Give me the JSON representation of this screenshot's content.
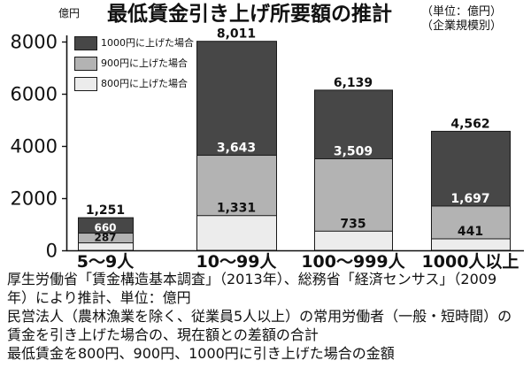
{
  "chart_data": {
    "type": "bar",
    "bar_mode": "overlay",
    "title": "最低賃金引き上げ所要額の推計",
    "subtitle": [
      "（単位：億円）",
      "（企業規模別）"
    ],
    "ylabel": "億円",
    "categories": [
      "5〜9人",
      "10〜99人",
      "100〜999人",
      "1000人以上"
    ],
    "ylim": [
      0,
      8000
    ],
    "yticks": [
      0,
      2000,
      4000,
      6000,
      8000
    ],
    "grid": false,
    "legend_position": "top-left",
    "series": [
      {
        "name": "1000円に上げた場合",
        "color": "#474747",
        "values": [
          1251,
          8011,
          6139,
          4562
        ],
        "labels": [
          "1,251",
          "8,011",
          "6,139",
          "4,562"
        ]
      },
      {
        "name": "900円に上げた場合",
        "color": "#b3b3b3",
        "values": [
          660,
          3643,
          3509,
          1697
        ],
        "labels": [
          "660",
          "3,643",
          "3,509",
          "1,697"
        ]
      },
      {
        "name": "800円に上げた場合",
        "color": "#ececec",
        "values": [
          287,
          1331,
          735,
          441
        ],
        "labels": [
          "287",
          "1,331",
          "735",
          "441"
        ]
      }
    ]
  },
  "notes": [
    "厚生労働省「賃金構造基本調査」（2013年）、総務省「経済センサス」（2009",
    "年）により推計、単位：億円",
    "民営法人（農林漁業を除く、従業員5人以上）の常用労働者（一般・短時間）の",
    "賃金を引き上げた場合の、現在額との差額の合計",
    "最低賃金を800円、900円、1000円に引き上げた場合の金額"
  ]
}
